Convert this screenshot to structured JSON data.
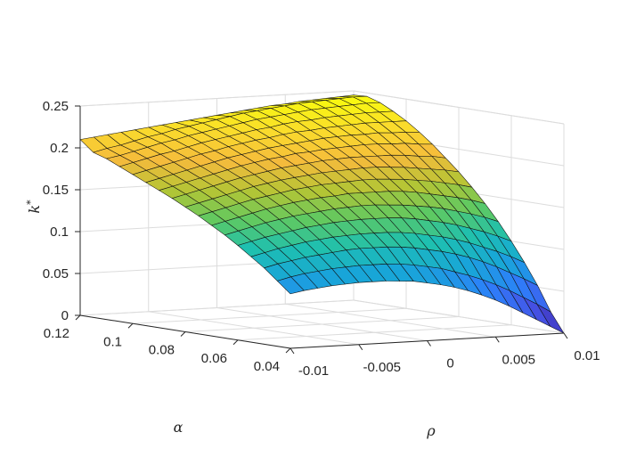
{
  "chart_data": {
    "type": "surface",
    "title": "",
    "xlabel": "ρ",
    "ylabel": "α",
    "zlabel": "k*",
    "xlim": [
      -0.01,
      0.01
    ],
    "ylim": [
      0.04,
      0.12
    ],
    "zlim": [
      0,
      0.25
    ],
    "x_ticks": [
      "-0.01",
      "-0.005",
      "0",
      "0.005",
      "0.01"
    ],
    "y_ticks": [
      "0.04",
      "0.06",
      "0.08",
      "0.1",
      "0.12"
    ],
    "z_ticks": [
      "0",
      "0.05",
      "0.1",
      "0.15",
      "0.2",
      "0.25"
    ],
    "x_tick_values": [
      -0.01,
      -0.005,
      0,
      0.005,
      0.01
    ],
    "y_tick_values": [
      0.04,
      0.06,
      0.08,
      0.1,
      0.12
    ],
    "z_tick_values": [
      0,
      0.05,
      0.1,
      0.15,
      0.2,
      0.25
    ],
    "grid": true,
    "colormap": "parula",
    "colormap_stops": [
      "#3e26a8",
      "#4653e6",
      "#2d7ffa",
      "#18a6d8",
      "#1ec0b0",
      "#5ec962",
      "#b4c535",
      "#f5bb3c",
      "#fadc2c",
      "#f9fb0e"
    ],
    "grid_x": [
      -0.01,
      -0.009,
      -0.008,
      -0.007,
      -0.006,
      -0.005,
      -0.004,
      -0.003,
      -0.002,
      -0.001,
      0,
      0.001,
      0.002,
      0.003,
      0.004,
      0.005,
      0.006,
      0.007,
      0.008,
      0.009,
      0.01
    ],
    "grid_y": [
      0.04,
      0.045,
      0.05,
      0.055,
      0.06,
      0.065,
      0.07,
      0.075,
      0.08,
      0.085,
      0.09,
      0.095,
      0.1,
      0.105,
      0.11,
      0.115,
      0.12
    ],
    "corner_values": {
      "rho_-0.01_alpha_0.12": 0.21,
      "rho_0.01_alpha_0.12": 0.245,
      "rho_-0.01_alpha_0.04": 0.065,
      "rho_0.01_alpha_0.04": 0.0
    },
    "z": [
      [
        0.065,
        0.068,
        0.07,
        0.072,
        0.073,
        0.074,
        0.074,
        0.074,
        0.073,
        0.072,
        0.069,
        0.066,
        0.062,
        0.057,
        0.051,
        0.044,
        0.036,
        0.027,
        0.018,
        0.009,
        0.0
      ],
      [
        0.078,
        0.082,
        0.085,
        0.087,
        0.089,
        0.09,
        0.091,
        0.091,
        0.091,
        0.09,
        0.088,
        0.085,
        0.082,
        0.077,
        0.072,
        0.066,
        0.059,
        0.051,
        0.042,
        0.033,
        0.023
      ],
      [
        0.091,
        0.095,
        0.098,
        0.101,
        0.103,
        0.105,
        0.107,
        0.108,
        0.108,
        0.108,
        0.107,
        0.105,
        0.102,
        0.099,
        0.095,
        0.09,
        0.084,
        0.077,
        0.069,
        0.061,
        0.052
      ],
      [
        0.102,
        0.106,
        0.11,
        0.113,
        0.116,
        0.118,
        0.12,
        0.121,
        0.122,
        0.122,
        0.122,
        0.121,
        0.119,
        0.116,
        0.113,
        0.109,
        0.104,
        0.098,
        0.092,
        0.085,
        0.077
      ],
      [
        0.113,
        0.117,
        0.121,
        0.124,
        0.127,
        0.13,
        0.132,
        0.134,
        0.135,
        0.136,
        0.136,
        0.136,
        0.135,
        0.133,
        0.13,
        0.127,
        0.123,
        0.118,
        0.113,
        0.107,
        0.1
      ],
      [
        0.123,
        0.127,
        0.131,
        0.135,
        0.138,
        0.141,
        0.143,
        0.145,
        0.147,
        0.148,
        0.149,
        0.149,
        0.148,
        0.147,
        0.145,
        0.143,
        0.14,
        0.136,
        0.132,
        0.127,
        0.121
      ],
      [
        0.132,
        0.136,
        0.14,
        0.144,
        0.148,
        0.151,
        0.154,
        0.156,
        0.158,
        0.159,
        0.161,
        0.161,
        0.161,
        0.161,
        0.16,
        0.158,
        0.155,
        0.152,
        0.149,
        0.145,
        0.14
      ],
      [
        0.141,
        0.145,
        0.149,
        0.153,
        0.157,
        0.16,
        0.163,
        0.166,
        0.168,
        0.17,
        0.171,
        0.172,
        0.173,
        0.173,
        0.172,
        0.171,
        0.169,
        0.167,
        0.164,
        0.161,
        0.157
      ],
      [
        0.149,
        0.153,
        0.157,
        0.161,
        0.165,
        0.169,
        0.172,
        0.175,
        0.177,
        0.179,
        0.181,
        0.182,
        0.183,
        0.184,
        0.184,
        0.183,
        0.182,
        0.18,
        0.178,
        0.176,
        0.173
      ],
      [
        0.157,
        0.161,
        0.165,
        0.169,
        0.173,
        0.177,
        0.18,
        0.183,
        0.186,
        0.188,
        0.19,
        0.192,
        0.193,
        0.194,
        0.194,
        0.194,
        0.194,
        0.193,
        0.191,
        0.19,
        0.187
      ],
      [
        0.164,
        0.168,
        0.172,
        0.176,
        0.18,
        0.184,
        0.188,
        0.191,
        0.194,
        0.196,
        0.199,
        0.2,
        0.202,
        0.203,
        0.204,
        0.205,
        0.205,
        0.204,
        0.204,
        0.202,
        0.201
      ],
      [
        0.171,
        0.175,
        0.179,
        0.183,
        0.187,
        0.191,
        0.195,
        0.198,
        0.201,
        0.204,
        0.206,
        0.208,
        0.21,
        0.212,
        0.213,
        0.214,
        0.214,
        0.215,
        0.214,
        0.214,
        0.213
      ],
      [
        0.178,
        0.182,
        0.186,
        0.19,
        0.194,
        0.198,
        0.201,
        0.205,
        0.208,
        0.211,
        0.213,
        0.216,
        0.218,
        0.219,
        0.221,
        0.222,
        0.223,
        0.224,
        0.224,
        0.224,
        0.224
      ],
      [
        0.185,
        0.189,
        0.193,
        0.197,
        0.2,
        0.204,
        0.208,
        0.211,
        0.214,
        0.217,
        0.22,
        0.222,
        0.225,
        0.227,
        0.228,
        0.23,
        0.231,
        0.232,
        0.233,
        0.233,
        0.233
      ],
      [
        0.192,
        0.195,
        0.199,
        0.203,
        0.207,
        0.21,
        0.214,
        0.217,
        0.22,
        0.223,
        0.226,
        0.229,
        0.231,
        0.233,
        0.235,
        0.237,
        0.238,
        0.239,
        0.24,
        0.241,
        0.241
      ],
      [
        0.197,
        0.201,
        0.204,
        0.208,
        0.212,
        0.215,
        0.219,
        0.222,
        0.225,
        0.228,
        0.231,
        0.234,
        0.236,
        0.238,
        0.24,
        0.242,
        0.243,
        0.244,
        0.245,
        0.246,
        0.246
      ],
      [
        0.21,
        0.212,
        0.214,
        0.216,
        0.218,
        0.22,
        0.222,
        0.224,
        0.226,
        0.228,
        0.23,
        0.232,
        0.234,
        0.236,
        0.238,
        0.239,
        0.241,
        0.242,
        0.243,
        0.244,
        0.245
      ]
    ]
  }
}
